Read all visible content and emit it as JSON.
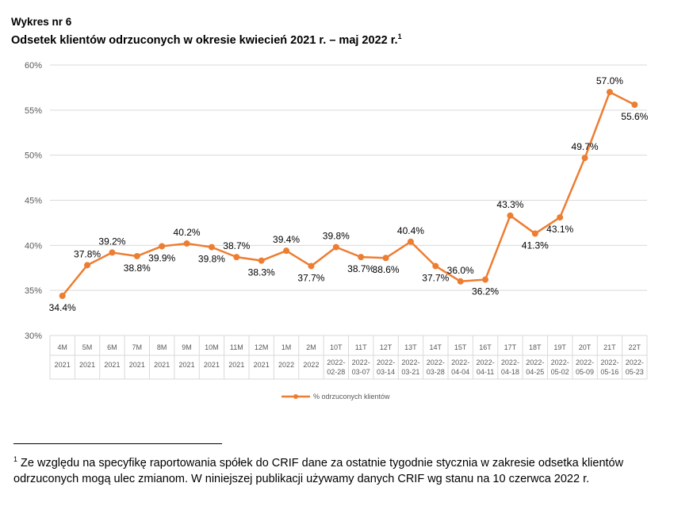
{
  "header": {
    "label": "Wykres nr 6",
    "title": "Odsetek klientów odrzuconych w okresie kwiecień 2021 r. – maj 2022 r.",
    "title_footnote_mark": "1"
  },
  "footnote": {
    "mark": "1",
    "text": " Ze względu na specyfikę raportowania spółek do CRIF dane za ostatnie tygodnie stycznia w zakresie odsetka klientów odrzuconych mogą ulec zmianom. W niniejszej publikacji używamy danych CRIF wg stanu na 10 czerwca 2022 r."
  },
  "colors": {
    "series": "#ED7D31",
    "grid": "#D9D9D9",
    "axis_text": "#595959"
  },
  "chart_data": {
    "type": "line",
    "title": "",
    "xlabel": "",
    "ylabel": "",
    "ylim": [
      30,
      60
    ],
    "ytick_labels": [
      "30%",
      "35%",
      "40%",
      "45%",
      "50%",
      "55%",
      "60%"
    ],
    "grid": true,
    "legend_position": "bottom",
    "categories": [
      {
        "top": "4M",
        "bottom": "2021"
      },
      {
        "top": "5M",
        "bottom": "2021"
      },
      {
        "top": "6M",
        "bottom": "2021"
      },
      {
        "top": "7M",
        "bottom": "2021"
      },
      {
        "top": "8M",
        "bottom": "2021"
      },
      {
        "top": "9M",
        "bottom": "2021"
      },
      {
        "top": "10M",
        "bottom": "2021"
      },
      {
        "top": "11M",
        "bottom": "2021"
      },
      {
        "top": "12M",
        "bottom": "2021"
      },
      {
        "top": "1M",
        "bottom": "2022"
      },
      {
        "top": "2M",
        "bottom": "2022"
      },
      {
        "top": "10T",
        "bottom": "2022-02-28"
      },
      {
        "top": "11T",
        "bottom": "2022-03-07"
      },
      {
        "top": "12T",
        "bottom": "2022-03-14"
      },
      {
        "top": "13T",
        "bottom": "2022-03-21"
      },
      {
        "top": "14T",
        "bottom": "2022-03-28"
      },
      {
        "top": "15T",
        "bottom": "2022-04-04"
      },
      {
        "top": "16T",
        "bottom": "2022-04-11"
      },
      {
        "top": "17T",
        "bottom": "2022-04-18"
      },
      {
        "top": "18T",
        "bottom": "2022-04-25"
      },
      {
        "top": "19T",
        "bottom": "2022-05-02"
      },
      {
        "top": "20T",
        "bottom": "2022-05-09"
      },
      {
        "top": "21T",
        "bottom": "2022-05-16"
      },
      {
        "top": "22T",
        "bottom": "2022-05-23"
      }
    ],
    "series": [
      {
        "name": "% odrzuconych klientów",
        "values": [
          34.4,
          37.8,
          39.2,
          38.8,
          39.9,
          40.2,
          39.8,
          38.7,
          38.3,
          39.4,
          37.7,
          39.8,
          38.7,
          38.6,
          40.4,
          37.7,
          36.0,
          36.2,
          43.3,
          41.3,
          43.1,
          49.7,
          57.0,
          55.6
        ],
        "labels": [
          "34.4%",
          "37.8%",
          "39.2%",
          "38.8%",
          "39.9%",
          "40.2%",
          "39.8%",
          "38.7%",
          "38.3%",
          "39.4%",
          "37.7%",
          "39.8%",
          "38.7%",
          "38.6%",
          "40.4%",
          "37.7%",
          "36.0%",
          "36.2%",
          "43.3%",
          "41.3%",
          "43.1%",
          "49.7%",
          "57.0%",
          "55.6%"
        ],
        "label_positions": [
          "below",
          "above",
          "above",
          "below",
          "below",
          "above",
          "below",
          "above",
          "below",
          "above",
          "below",
          "above",
          "below",
          "below",
          "above",
          "below",
          "above",
          "below",
          "above",
          "below",
          "below",
          "above",
          "above",
          "below"
        ]
      }
    ]
  }
}
